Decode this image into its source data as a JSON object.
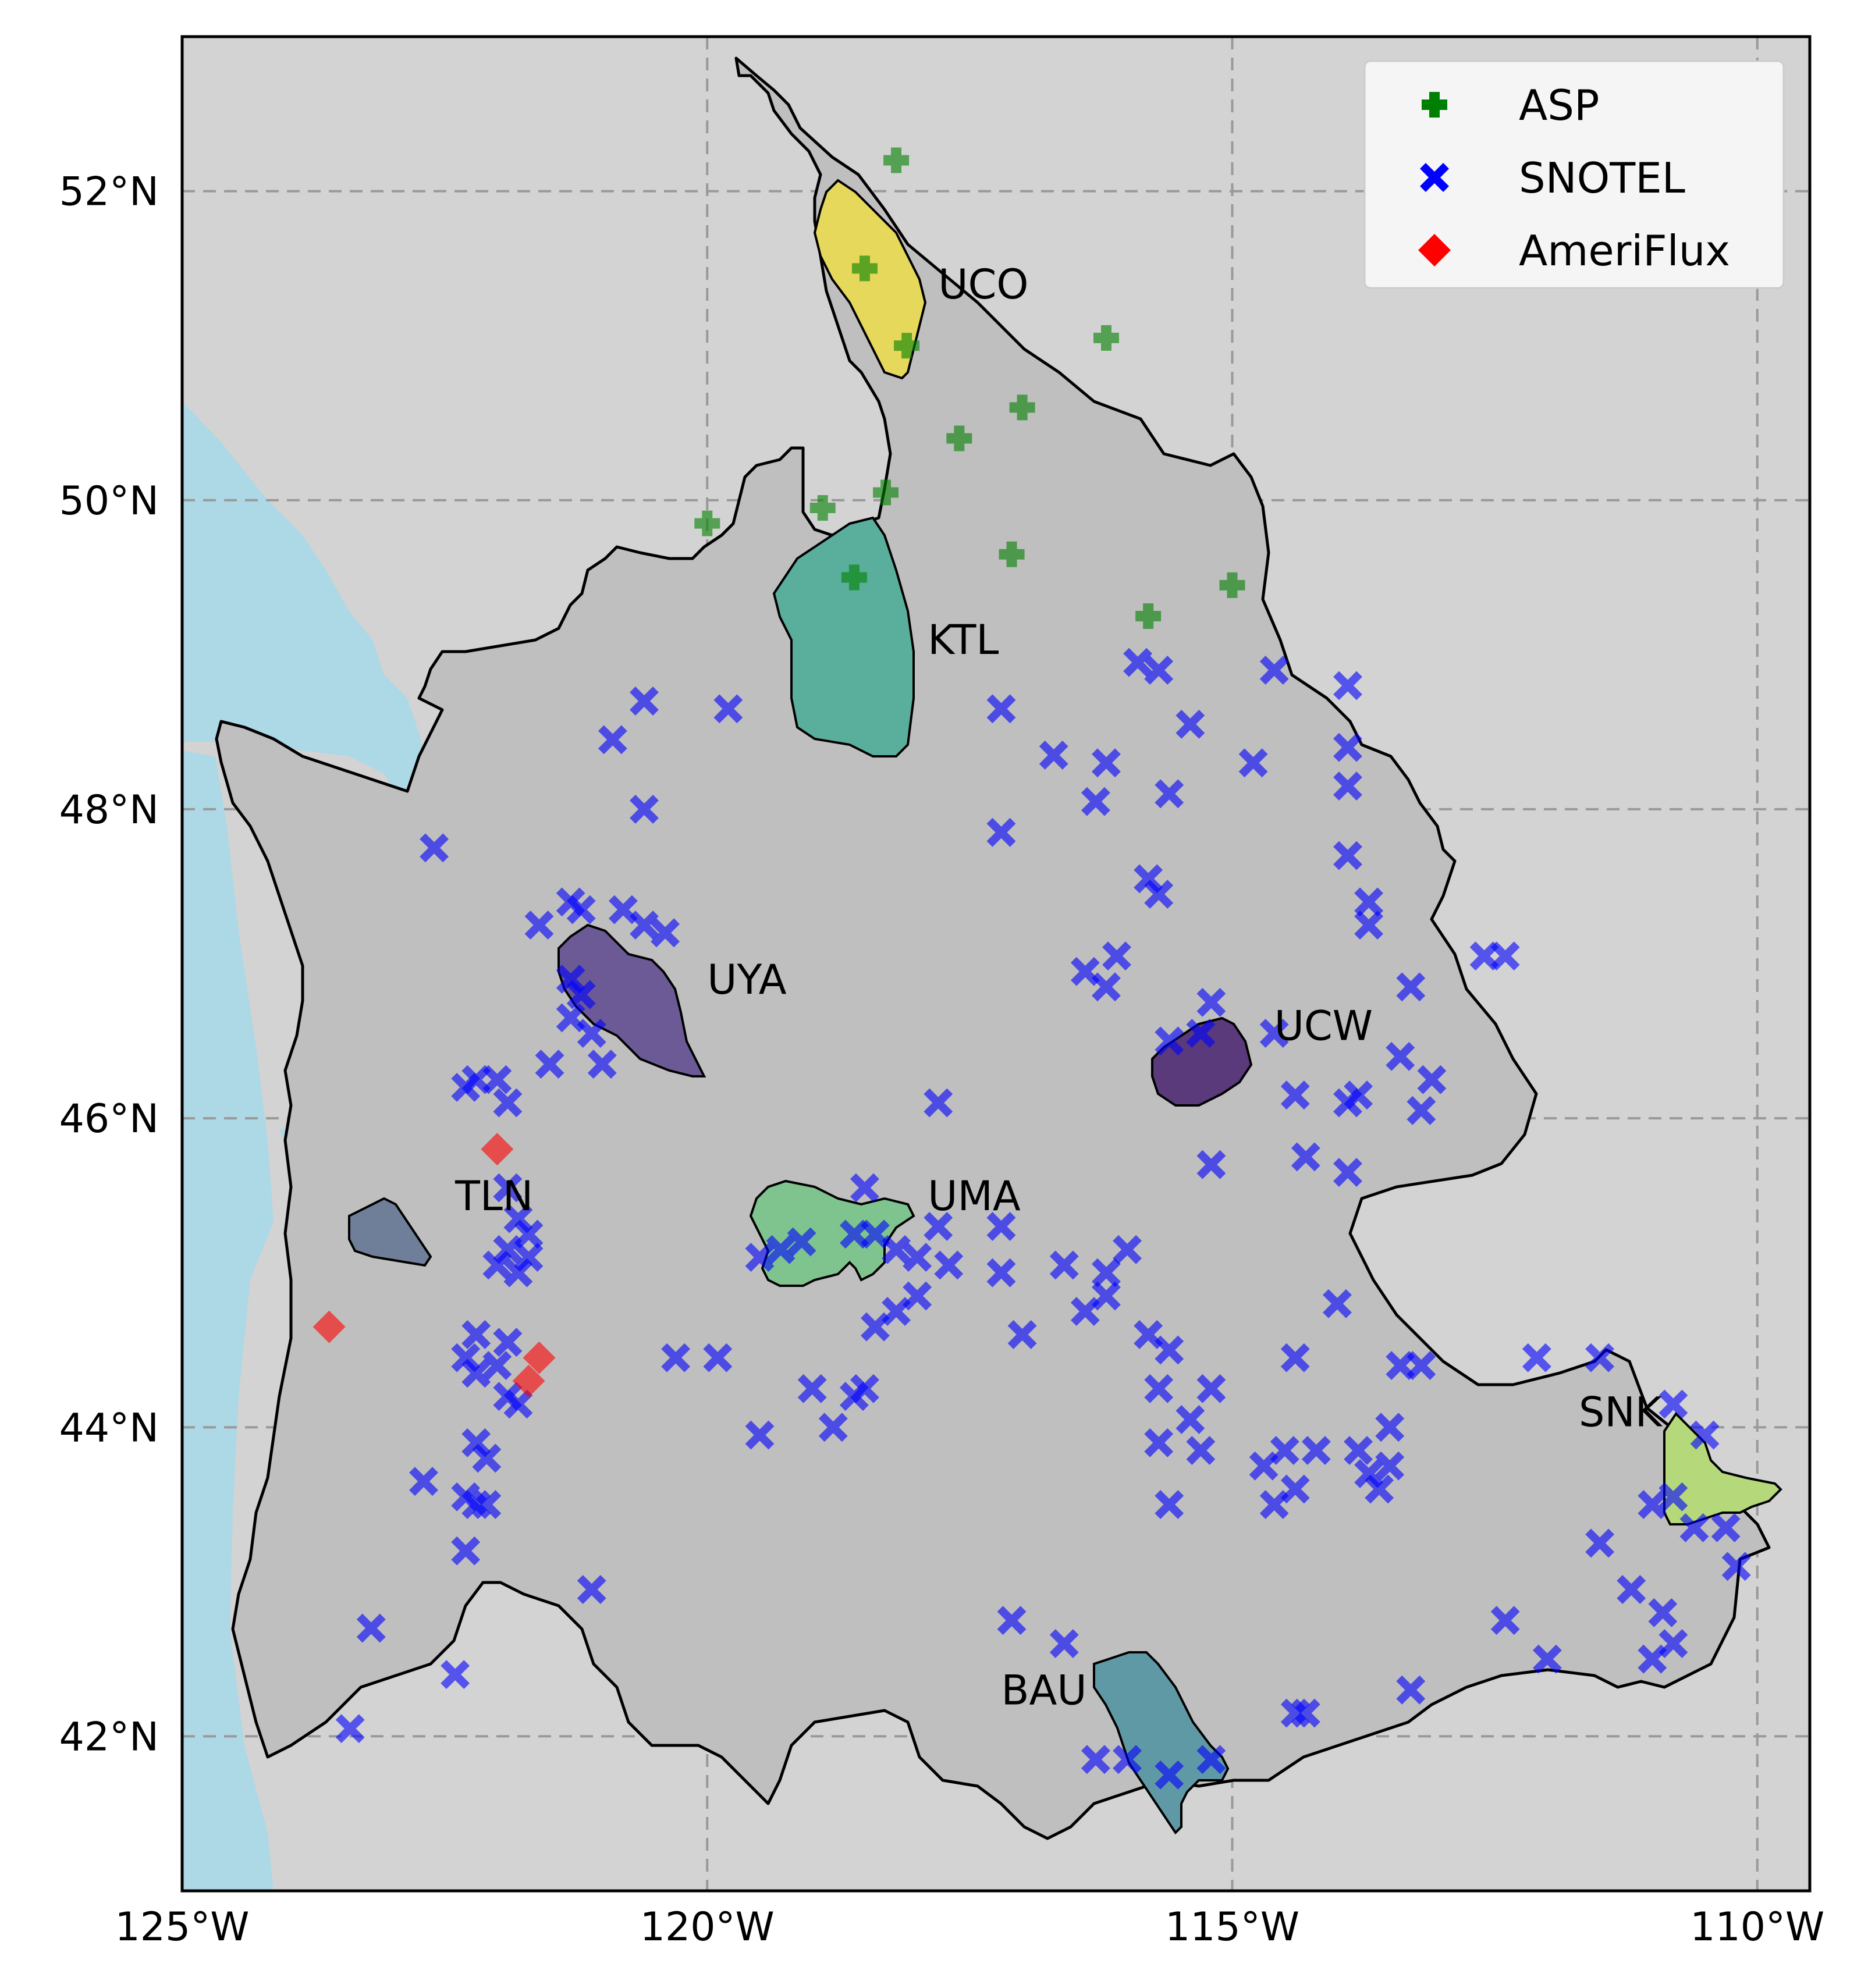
{
  "chart_data": {
    "type": "scatter",
    "map_extent": {
      "lon": [
        -125,
        -109.5
      ],
      "lat": [
        41.0,
        53.0
      ]
    },
    "grid": true,
    "legend_position": "top-right",
    "x_ticks": [
      {
        "lon": -125,
        "label": "125°W"
      },
      {
        "lon": -120,
        "label": "120°W"
      },
      {
        "lon": -115,
        "label": "115°W"
      },
      {
        "lon": -110,
        "label": "110°W"
      }
    ],
    "y_ticks": [
      {
        "lat": 42,
        "label": "42°N"
      },
      {
        "lat": 44,
        "label": "44°N"
      },
      {
        "lat": 46,
        "label": "46°N"
      },
      {
        "lat": 48,
        "label": "48°N"
      },
      {
        "lat": 50,
        "label": "50°N"
      },
      {
        "lat": 52,
        "label": "52°N"
      }
    ],
    "colors": {
      "land": "#d3d3d3",
      "basin": "#bfbfbf",
      "water": "#add8e6",
      "grid": "#999999"
    },
    "basins": [
      {
        "name": "UCO",
        "color": "#e6d85a",
        "label_at": [
          -117.8,
          51.4
        ]
      },
      {
        "name": "KTL",
        "color": "#5aae9c",
        "label_at": [
          -117.9,
          49.1
        ]
      },
      {
        "name": "UYA",
        "color": "#6b5a96",
        "label_at": [
          -120.0,
          46.9
        ]
      },
      {
        "name": "UCW",
        "color": "#5a3a7a",
        "label_at": [
          -114.6,
          46.6
        ]
      },
      {
        "name": "UMA",
        "color": "#7fc48e",
        "label_at": [
          -117.9,
          45.5
        ]
      },
      {
        "name": "TLN",
        "color": "#6f7f9a",
        "label_at": [
          -122.4,
          45.5
        ]
      },
      {
        "name": "SNK",
        "color": "#b5d97a",
        "label_at": [
          -111.7,
          44.1
        ]
      },
      {
        "name": "BAU",
        "color": "#6099a6",
        "label_at": [
          -117.2,
          42.3
        ]
      }
    ],
    "series": [
      {
        "name": "ASP",
        "marker": "plus",
        "color": "#008000",
        "points": [
          [
            -118.2,
            52.2
          ],
          [
            -118.5,
            51.5
          ],
          [
            -118.1,
            51.0
          ],
          [
            -116.2,
            51.05
          ],
          [
            -117.0,
            50.6
          ],
          [
            -117.6,
            50.4
          ],
          [
            -118.3,
            50.05
          ],
          [
            -118.9,
            49.95
          ],
          [
            -120.0,
            49.85
          ],
          [
            -118.6,
            49.5
          ],
          [
            -117.1,
            49.65
          ],
          [
            -115.8,
            49.25
          ],
          [
            -115.0,
            49.45
          ]
        ]
      },
      {
        "name": "SNOTEL",
        "marker": "x",
        "color": "#0000ff",
        "points": [
          [
            -120.6,
            48.7
          ],
          [
            -120.9,
            48.45
          ],
          [
            -120.6,
            48.0
          ],
          [
            -119.8,
            48.65
          ],
          [
            -117.2,
            48.65
          ],
          [
            -116.7,
            48.35
          ],
          [
            -116.2,
            48.3
          ],
          [
            -116.3,
            48.05
          ],
          [
            -117.2,
            47.85
          ],
          [
            -115.9,
            48.95
          ],
          [
            -115.7,
            48.9
          ],
          [
            -115.4,
            48.55
          ],
          [
            -115.6,
            48.1
          ],
          [
            -114.8,
            48.3
          ],
          [
            -114.6,
            48.9
          ],
          [
            -113.9,
            48.8
          ],
          [
            -113.9,
            48.4
          ],
          [
            -113.9,
            48.15
          ],
          [
            -113.9,
            47.7
          ],
          [
            -113.7,
            47.4
          ],
          [
            -113.7,
            47.25
          ],
          [
            -112.6,
            47.05
          ],
          [
            -112.4,
            47.05
          ],
          [
            -113.3,
            46.85
          ],
          [
            -115.8,
            47.55
          ],
          [
            -115.7,
            47.45
          ],
          [
            -116.4,
            46.95
          ],
          [
            -116.1,
            47.05
          ],
          [
            -116.2,
            46.85
          ],
          [
            -115.6,
            46.5
          ],
          [
            -115.2,
            46.75
          ],
          [
            -115.3,
            46.55
          ],
          [
            -114.6,
            46.55
          ],
          [
            -114.4,
            46.15
          ],
          [
            -114.3,
            45.75
          ],
          [
            -113.9,
            46.1
          ],
          [
            -113.8,
            46.15
          ],
          [
            -113.4,
            46.4
          ],
          [
            -113.1,
            46.25
          ],
          [
            -113.2,
            46.05
          ],
          [
            -113.9,
            45.65
          ],
          [
            -115.2,
            45.7
          ],
          [
            -114.0,
            44.8
          ],
          [
            -114.4,
            44.45
          ],
          [
            -113.4,
            44.4
          ],
          [
            -113.2,
            44.4
          ],
          [
            -113.5,
            44.0
          ],
          [
            -114.2,
            43.85
          ],
          [
            -114.5,
            43.85
          ],
          [
            -114.7,
            43.75
          ],
          [
            -114.4,
            43.6
          ],
          [
            -114.6,
            43.5
          ],
          [
            -113.8,
            43.85
          ],
          [
            -113.7,
            43.7
          ],
          [
            -113.5,
            43.75
          ],
          [
            -113.6,
            43.6
          ],
          [
            -115.3,
            43.85
          ],
          [
            -115.2,
            44.25
          ],
          [
            -115.4,
            44.05
          ],
          [
            -115.7,
            44.25
          ],
          [
            -115.6,
            44.5
          ],
          [
            -115.8,
            44.6
          ],
          [
            -115.7,
            43.9
          ],
          [
            -115.6,
            43.5
          ],
          [
            -116.0,
            45.15
          ],
          [
            -116.2,
            45.0
          ],
          [
            -116.2,
            44.85
          ],
          [
            -116.4,
            44.75
          ],
          [
            -116.6,
            45.05
          ],
          [
            -117.0,
            44.6
          ],
          [
            -117.2,
            45.3
          ],
          [
            -117.2,
            45.0
          ],
          [
            -117.7,
            45.05
          ],
          [
            -117.8,
            45.3
          ],
          [
            -118.0,
            45.1
          ],
          [
            -118.0,
            44.85
          ],
          [
            -118.2,
            44.75
          ],
          [
            -118.4,
            44.65
          ],
          [
            -118.2,
            45.15
          ],
          [
            -118.4,
            45.25
          ],
          [
            -118.5,
            45.55
          ],
          [
            -118.6,
            45.25
          ],
          [
            -119.1,
            45.2
          ],
          [
            -119.3,
            45.15
          ],
          [
            -119.5,
            45.1
          ],
          [
            -119.0,
            44.25
          ],
          [
            -118.6,
            44.2
          ],
          [
            -118.5,
            44.25
          ],
          [
            -118.8,
            44.0
          ],
          [
            -119.5,
            43.95
          ],
          [
            -119.9,
            44.45
          ],
          [
            -120.3,
            44.45
          ],
          [
            -117.8,
            46.1
          ],
          [
            -117.1,
            42.75
          ],
          [
            -116.6,
            42.6
          ],
          [
            -116.3,
            41.85
          ],
          [
            -116.0,
            41.85
          ],
          [
            -115.6,
            41.75
          ],
          [
            -115.2,
            41.85
          ],
          [
            -114.4,
            42.15
          ],
          [
            -114.3,
            42.15
          ],
          [
            -113.3,
            42.3
          ],
          [
            -112.4,
            42.75
          ],
          [
            -112.0,
            42.5
          ],
          [
            -111.5,
            43.25
          ],
          [
            -111.2,
            42.95
          ],
          [
            -110.9,
            42.8
          ],
          [
            -110.8,
            42.6
          ],
          [
            -111.0,
            42.5
          ],
          [
            -110.6,
            43.35
          ],
          [
            -110.3,
            43.35
          ],
          [
            -110.2,
            43.1
          ],
          [
            -110.8,
            43.55
          ],
          [
            -111.0,
            43.5
          ],
          [
            -111.5,
            44.45
          ],
          [
            -112.1,
            44.45
          ],
          [
            -110.8,
            44.15
          ],
          [
            -110.5,
            43.95
          ],
          [
            -121.2,
            47.35
          ],
          [
            -121.3,
            47.4
          ],
          [
            -120.8,
            47.35
          ],
          [
            -120.6,
            47.25
          ],
          [
            -120.4,
            47.2
          ],
          [
            -121.6,
            47.25
          ],
          [
            -121.3,
            46.9
          ],
          [
            -121.2,
            46.8
          ],
          [
            -121.3,
            46.65
          ],
          [
            -121.1,
            46.55
          ],
          [
            -121.0,
            46.35
          ],
          [
            -121.5,
            46.35
          ],
          [
            -122.3,
            46.2
          ],
          [
            -122.2,
            46.25
          ],
          [
            -122.0,
            46.25
          ],
          [
            -121.9,
            46.1
          ],
          [
            -122.6,
            47.75
          ],
          [
            -121.9,
            45.55
          ],
          [
            -121.8,
            45.35
          ],
          [
            -121.7,
            45.25
          ],
          [
            -121.7,
            45.1
          ],
          [
            -121.8,
            45.0
          ],
          [
            -122.0,
            45.05
          ],
          [
            -121.9,
            45.15
          ],
          [
            -121.9,
            44.55
          ],
          [
            -122.0,
            44.4
          ],
          [
            -122.2,
            44.35
          ],
          [
            -122.3,
            44.45
          ],
          [
            -122.2,
            44.6
          ],
          [
            -121.9,
            44.2
          ],
          [
            -121.8,
            44.15
          ],
          [
            -122.1,
            43.8
          ],
          [
            -122.2,
            43.9
          ],
          [
            -122.2,
            43.5
          ],
          [
            -122.3,
            43.55
          ],
          [
            -122.1,
            43.5
          ],
          [
            -122.3,
            43.2
          ],
          [
            -122.7,
            43.65
          ],
          [
            -123.2,
            42.7
          ],
          [
            -123.4,
            42.05
          ],
          [
            -122.4,
            42.4
          ],
          [
            -121.1,
            42.95
          ]
        ]
      },
      {
        "name": "AmeriFlux",
        "marker": "diamond",
        "color": "#ff0000",
        "points": [
          [
            -122.0,
            45.8
          ],
          [
            -123.6,
            44.65
          ],
          [
            -121.6,
            44.45
          ],
          [
            -121.7,
            44.3
          ]
        ]
      }
    ]
  }
}
